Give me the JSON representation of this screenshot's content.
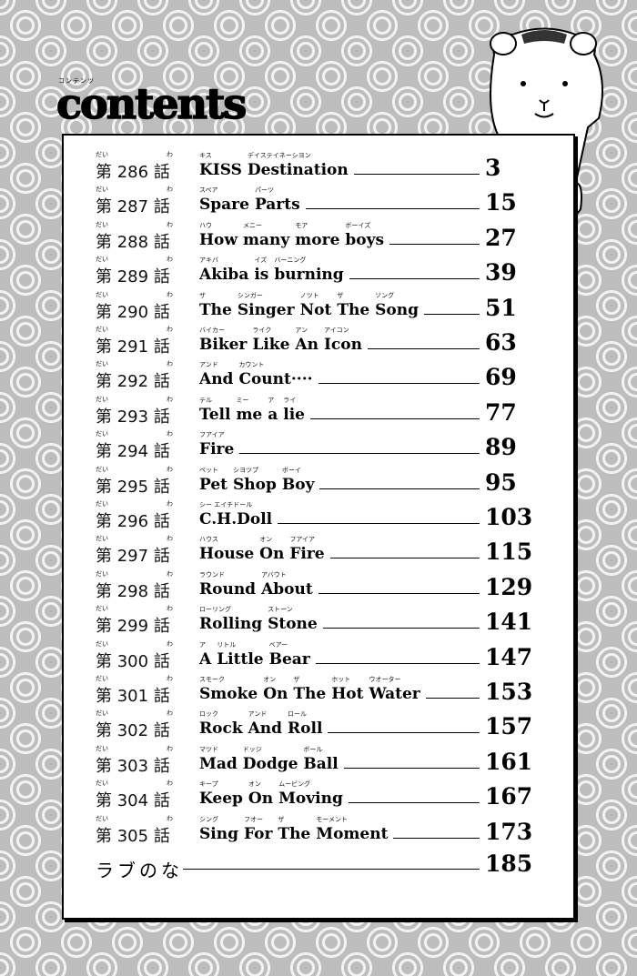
{
  "heading": {
    "ruby": "コンテンツ",
    "title": "contents"
  },
  "entries": [
    {
      "dai": "だい",
      "prefix": "第",
      "num": "286",
      "wa": "わ",
      "suffix": "話",
      "words": [
        [
          "キス",
          "KISS"
        ],
        [
          "デイステイネーシヨン",
          "Destination"
        ]
      ],
      "page": "3"
    },
    {
      "dai": "だい",
      "prefix": "第",
      "num": "287",
      "wa": "わ",
      "suffix": "話",
      "words": [
        [
          "スペア",
          "Spare"
        ],
        [
          "パーツ",
          "Parts"
        ]
      ],
      "page": "15"
    },
    {
      "dai": "だい",
      "prefix": "第",
      "num": "288",
      "wa": "わ",
      "suffix": "話",
      "words": [
        [
          "ハウ",
          "How"
        ],
        [
          "メニー",
          "many"
        ],
        [
          "モア",
          "more"
        ],
        [
          "ボーイズ",
          "boys"
        ]
      ],
      "page": "27"
    },
    {
      "dai": "だい",
      "prefix": "第",
      "num": "289",
      "wa": "わ",
      "suffix": "話",
      "words": [
        [
          "アキバ",
          "Akiba"
        ],
        [
          "イズ",
          "is"
        ],
        [
          "バーニング",
          "burning"
        ]
      ],
      "page": "39"
    },
    {
      "dai": "だい",
      "prefix": "第",
      "num": "290",
      "wa": "わ",
      "suffix": "話",
      "words": [
        [
          "ザ",
          "The"
        ],
        [
          "シンガー",
          "Singer"
        ],
        [
          "ノツト",
          "Not"
        ],
        [
          "ザ",
          "The"
        ],
        [
          "ソング",
          "Song"
        ]
      ],
      "page": "51"
    },
    {
      "dai": "だい",
      "prefix": "第",
      "num": "291",
      "wa": "わ",
      "suffix": "話",
      "words": [
        [
          "バイカー",
          "Biker"
        ],
        [
          "ライク",
          "Like"
        ],
        [
          "アン",
          "An"
        ],
        [
          "アイコン",
          "Icon"
        ]
      ],
      "page": "63"
    },
    {
      "dai": "だい",
      "prefix": "第",
      "num": "292",
      "wa": "わ",
      "suffix": "話",
      "words": [
        [
          "アンド",
          "And"
        ],
        [
          "カウント",
          "Count····"
        ]
      ],
      "page": "69"
    },
    {
      "dai": "だい",
      "prefix": "第",
      "num": "293",
      "wa": "わ",
      "suffix": "話",
      "words": [
        [
          "テル",
          "Tell"
        ],
        [
          "ミー",
          "me"
        ],
        [
          "ア",
          "a"
        ],
        [
          "ライ",
          "lie"
        ]
      ],
      "page": "77"
    },
    {
      "dai": "だい",
      "prefix": "第",
      "num": "294",
      "wa": "わ",
      "suffix": "話",
      "words": [
        [
          "フアイア",
          "Fire"
        ]
      ],
      "page": "89"
    },
    {
      "dai": "だい",
      "prefix": "第",
      "num": "295",
      "wa": "わ",
      "suffix": "話",
      "words": [
        [
          "ペット",
          "Pet"
        ],
        [
          "シヨツプ",
          "Shop"
        ],
        [
          "ボーイ",
          "Boy"
        ]
      ],
      "page": "95"
    },
    {
      "dai": "だい",
      "prefix": "第",
      "num": "296",
      "wa": "わ",
      "suffix": "話",
      "words": [
        [
          "シー エイチドール",
          "C.H.Doll"
        ]
      ],
      "page": "103"
    },
    {
      "dai": "だい",
      "prefix": "第",
      "num": "297",
      "wa": "わ",
      "suffix": "話",
      "words": [
        [
          "ハウス",
          "House"
        ],
        [
          "オン",
          "On"
        ],
        [
          "フアイア",
          "Fire"
        ]
      ],
      "page": "115"
    },
    {
      "dai": "だい",
      "prefix": "第",
      "num": "298",
      "wa": "わ",
      "suffix": "話",
      "words": [
        [
          "ラウンド",
          "Round"
        ],
        [
          "アバウト",
          "About"
        ]
      ],
      "page": "129"
    },
    {
      "dai": "だい",
      "prefix": "第",
      "num": "299",
      "wa": "わ",
      "suffix": "話",
      "words": [
        [
          "ローリング",
          "Rolling"
        ],
        [
          "ストーン",
          "Stone"
        ]
      ],
      "page": "141"
    },
    {
      "dai": "だい",
      "prefix": "第",
      "num": "300",
      "wa": "わ",
      "suffix": "話",
      "words": [
        [
          "ア",
          "A"
        ],
        [
          "リトル",
          "Little"
        ],
        [
          "ベアー",
          "Bear"
        ]
      ],
      "page": "147"
    },
    {
      "dai": "だい",
      "prefix": "第",
      "num": "301",
      "wa": "わ",
      "suffix": "話",
      "words": [
        [
          "スモーク",
          "Smoke"
        ],
        [
          "オン",
          "On"
        ],
        [
          "ザ",
          "The"
        ],
        [
          "ホット",
          "Hot"
        ],
        [
          "ウオーター",
          "Water"
        ]
      ],
      "page": "153"
    },
    {
      "dai": "だい",
      "prefix": "第",
      "num": "302",
      "wa": "わ",
      "suffix": "話",
      "words": [
        [
          "ロック",
          "Rock"
        ],
        [
          "アンド",
          "And"
        ],
        [
          "ロール",
          "Roll"
        ]
      ],
      "page": "157"
    },
    {
      "dai": "だい",
      "prefix": "第",
      "num": "303",
      "wa": "わ",
      "suffix": "話",
      "words": [
        [
          "マツド",
          "Mad"
        ],
        [
          "ドッジ",
          "Dodge"
        ],
        [
          "ボール",
          "Ball"
        ]
      ],
      "page": "161"
    },
    {
      "dai": "だい",
      "prefix": "第",
      "num": "304",
      "wa": "わ",
      "suffix": "話",
      "words": [
        [
          "キープ",
          "Keep"
        ],
        [
          "オン",
          "On"
        ],
        [
          "ムービング",
          "Moving"
        ]
      ],
      "page": "167"
    },
    {
      "dai": "だい",
      "prefix": "第",
      "num": "305",
      "wa": "わ",
      "suffix": "話",
      "words": [
        [
          "シング",
          "Sing"
        ],
        [
          "フオー",
          "For"
        ],
        [
          "ザ",
          "The"
        ],
        [
          "モーメント",
          "Moment"
        ]
      ],
      "page": "173"
    }
  ],
  "extra": {
    "label": "ラブのな",
    "page": "185"
  }
}
